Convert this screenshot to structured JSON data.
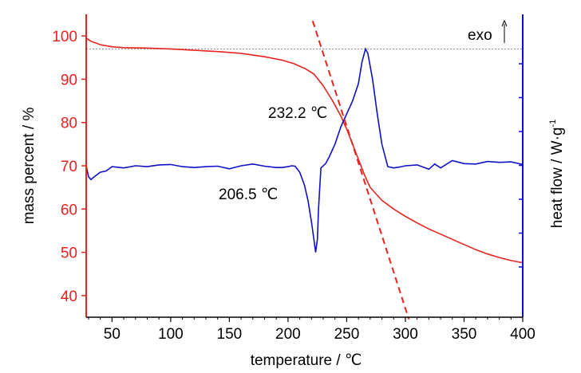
{
  "chart_data": {
    "type": "line",
    "xlabel": "temperature / ℃",
    "ylabel_left": "mass percent / %",
    "ylabel_right": "heat flow / W·g",
    "ylabel_right_sup": "-1",
    "xlim": [
      28,
      400
    ],
    "ylim_left": [
      35,
      105
    ],
    "x_ticks": [
      50,
      100,
      150,
      200,
      250,
      300,
      350,
      400
    ],
    "y_ticks_left": [
      40,
      50,
      60,
      70,
      80,
      90,
      100
    ],
    "grid": false,
    "annotations": {
      "peak1": "206.5 ℃",
      "peak2": "232.2 ℃",
      "exo": "exo"
    },
    "reference_line": {
      "y": 97
    },
    "tangent_line": {
      "x": [
        221,
        303
      ],
      "y": [
        103.5,
        34.5
      ]
    },
    "colors": {
      "mass": "#e8231e",
      "heat": "#1010c8",
      "axis_left": "#e8231e",
      "axis_right": "#1010c8"
    },
    "series": [
      {
        "axis": "left",
        "x": [
          28,
          32,
          40,
          50,
          60,
          80,
          100,
          120,
          140,
          160,
          180,
          195,
          205,
          215,
          222,
          230,
          238,
          245,
          250,
          255,
          260,
          265,
          270,
          280,
          290,
          300,
          310,
          320,
          330,
          340,
          350,
          360,
          370,
          380,
          390,
          400
        ],
        "values": [
          99.5,
          98.8,
          98,
          97.5,
          97.3,
          97.2,
          97,
          96.7,
          96.4,
          96,
          95.2,
          94.4,
          93.6,
          92.4,
          91.2,
          88.5,
          85,
          81.5,
          78.5,
          75,
          71.5,
          68,
          65,
          62,
          60,
          58.3,
          56.8,
          55.4,
          54.2,
          53,
          51.8,
          50.6,
          49.6,
          48.8,
          48.1,
          47.6
        ]
      },
      {
        "axis": "right",
        "x": [
          28,
          30,
          32,
          35,
          40,
          45,
          50,
          60,
          70,
          80,
          90,
          100,
          110,
          120,
          130,
          140,
          150,
          160,
          170,
          180,
          190,
          195,
          200,
          203,
          206,
          210,
          214,
          217,
          220,
          222,
          223.5,
          225,
          226,
          228,
          232,
          235,
          240,
          245,
          250,
          255,
          260,
          263,
          266,
          268,
          272,
          276,
          280,
          285,
          290,
          295,
          300,
          310,
          320,
          325,
          330,
          340,
          350,
          360,
          370,
          380,
          390,
          400
        ],
        "values": [
          70,
          67.5,
          66.8,
          67.5,
          68.5,
          68.8,
          69.8,
          69.5,
          70,
          69.8,
          70.2,
          70.3,
          69.8,
          69.6,
          69.8,
          69.9,
          69.3,
          70,
          70.4,
          69.9,
          69.6,
          69.6,
          69.8,
          70,
          69.9,
          68.5,
          65.5,
          62,
          57,
          53,
          50,
          53,
          60,
          69.5,
          70.5,
          72,
          75,
          79,
          82,
          85,
          89,
          94,
          97,
          96,
          90,
          82,
          75,
          69.8,
          69.5,
          69.7,
          70,
          70.2,
          69.2,
          70.4,
          69.5,
          71.2,
          70.5,
          70.4,
          71,
          70.8,
          70.9,
          70.3
        ]
      }
    ]
  }
}
